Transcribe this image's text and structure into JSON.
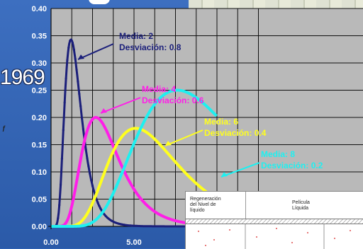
{
  "year_fragment": "1969",
  "y_axis_fragment": "ƒ",
  "diagram": {
    "label_left": "Regeneración\ndel Nivel de\nlíquido",
    "label_right": "Película\nLíquida"
  },
  "chart_data": {
    "type": "line",
    "title": "",
    "xlabel": "",
    "ylabel": "",
    "xlim": [
      0,
      10
    ],
    "ylim": [
      0,
      0.4
    ],
    "x_ticks": [
      "0.00",
      "5.00"
    ],
    "y_ticks": [
      "0.00",
      "0.05",
      "0.10",
      "0.15",
      "0.20",
      "0.25",
      "0.30",
      "0.35",
      "0.40"
    ],
    "grid": true,
    "series": [
      {
        "mean": 2,
        "sd": 0.8,
        "peak_x": 1.2,
        "peak_y": 0.343,
        "color": "#1b1f7a",
        "label_mean": "Media: 2",
        "label_sd": "Desviación: 0.8"
      },
      {
        "mean": 4,
        "sd": 0.6,
        "peak_x": 2.7,
        "peak_y": 0.2,
        "color": "#ff1ee8",
        "label_mean": "Media: 4",
        "label_sd": "Desviación: 0.6"
      },
      {
        "mean": 6,
        "sd": 0.4,
        "peak_x": 5.1,
        "peak_y": 0.18,
        "color": "#ffff1e",
        "label_mean": "Media: 6",
        "label_sd": "Desviación: 0.4"
      },
      {
        "mean": 8,
        "sd": 0.2,
        "peak_x": 7.6,
        "peak_y": 0.25,
        "color": "#1ef0f0",
        "label_mean": "Media: 8",
        "label_sd": "Desviación: 0.2"
      }
    ]
  }
}
